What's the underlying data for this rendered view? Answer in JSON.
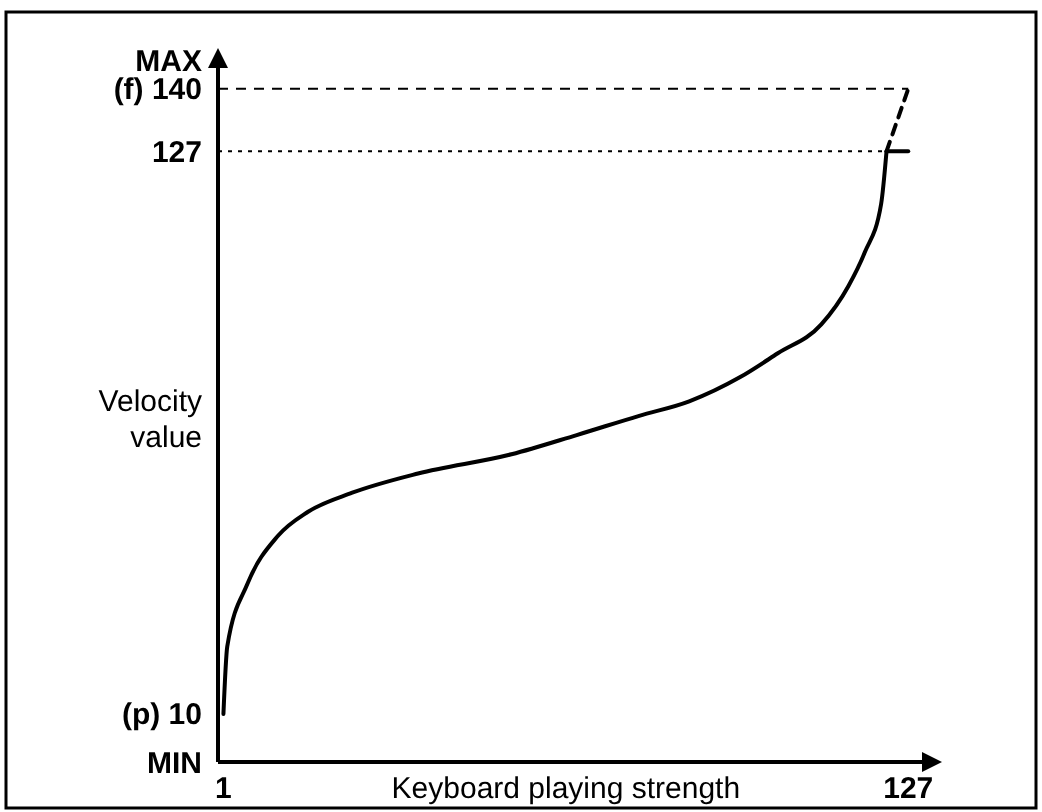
{
  "chart_data": {
    "type": "line",
    "xlabel": "Keyboard playing strength",
    "ylabel": "Velocity value",
    "xlim": [
      0,
      131
    ],
    "ylim": [
      0,
      146
    ],
    "xticks": [
      1,
      127
    ],
    "yticks": [
      {
        "value": 0,
        "label": "MIN"
      },
      {
        "value": 10,
        "label": "(p) 10"
      },
      127,
      {
        "value": 140,
        "label": "(f) 140"
      },
      {
        "value": 146,
        "label": "MAX"
      }
    ],
    "grid": false,
    "marker": "none",
    "ref_lines": [
      {
        "axis": "y",
        "value": 127,
        "line_style": "dotted",
        "color": "#000000"
      },
      {
        "axis": "y",
        "value": 140,
        "line_style": "dashed",
        "color": "#000000"
      }
    ],
    "series": [
      {
        "color": "#000000",
        "line_style": "solid",
        "x": [
          1,
          1.7,
          5.4,
          11,
          16.5,
          24.7,
          36.8,
          54,
          66,
          77.5,
          86.7,
          96,
          103,
          111,
          116,
          119,
          122,
          123
        ],
        "values": [
          10,
          24,
          37,
          47,
          52,
          56,
          60,
          64,
          68,
          72,
          75,
          80,
          85,
          91,
          99,
          106,
          116,
          127
        ]
      },
      {
        "color": "#000000",
        "line_style": "dashed",
        "x": [
          123,
          127
        ],
        "values": [
          127,
          140
        ]
      },
      {
        "color": "#000000",
        "line_style": "solid",
        "x": [
          123,
          127
        ],
        "values": [
          127,
          127
        ]
      }
    ]
  }
}
